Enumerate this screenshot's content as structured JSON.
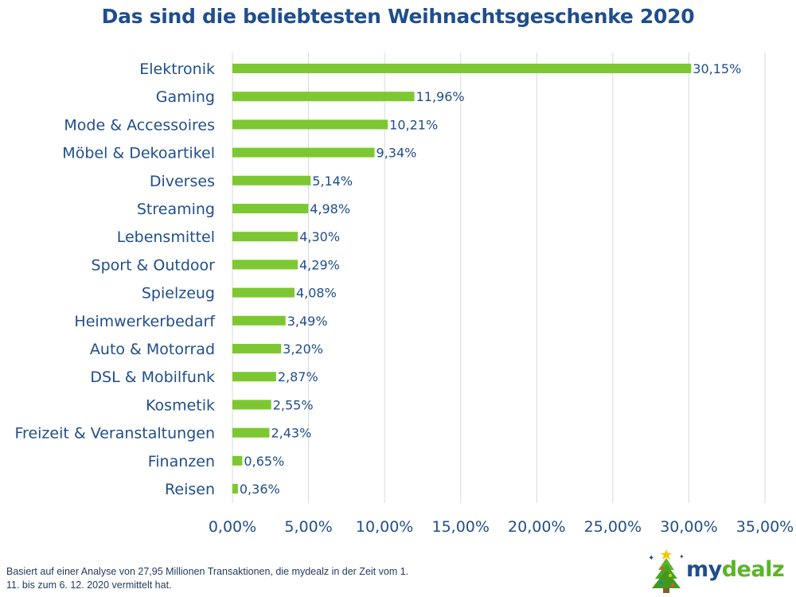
{
  "chart_data": {
    "type": "bar",
    "orientation": "horizontal",
    "title": "Das sind die beliebtesten Weihnachtsgeschenke 2020",
    "categories": [
      "Elektronik",
      "Gaming",
      "Mode & Accessoires",
      "Möbel & Dekoartikel",
      "Diverses",
      "Streaming",
      "Lebensmittel",
      "Sport & Outdoor",
      "Spielzeug",
      "Heimwerkerbedarf",
      "Auto & Motorrad",
      "DSL & Mobilfunk",
      "Kosmetik",
      "Freizeit & Veranstaltungen",
      "Finanzen",
      "Reisen"
    ],
    "values": [
      30.15,
      11.96,
      10.21,
      9.34,
      5.14,
      4.98,
      4.3,
      4.29,
      4.08,
      3.49,
      3.2,
      2.87,
      2.55,
      2.43,
      0.65,
      0.36
    ],
    "value_labels": [
      "30,15%",
      "11,96%",
      "10,21%",
      "9,34%",
      "5,14%",
      "4,98%",
      "4,30%",
      "4,29%",
      "4,08%",
      "3,49%",
      "3,20%",
      "2,87%",
      "2,55%",
      "2,43%",
      "0,65%",
      "0,36%"
    ],
    "xlim": [
      0,
      35
    ],
    "x_ticks": [
      0,
      5,
      10,
      15,
      20,
      25,
      30,
      35
    ],
    "x_tick_labels": [
      "0,00%",
      "5,00%",
      "10,00%",
      "15,00%",
      "20,00%",
      "25,00%",
      "30,00%",
      "35,00%"
    ],
    "xlabel": "",
    "ylabel": "",
    "grid": true,
    "bar_color": "#7dc832"
  },
  "footnote": "Basiert auf einer Analyse von 27,95 Millionen Transaktionen, die mydealz in der Zeit vom 1. 11. bis zum 6. 12. 2020 vermittelt hat.",
  "logo": {
    "part1": "my",
    "part2": "dealz",
    "icon": "christmas-tree-icon"
  },
  "colors": {
    "title": "#1f4e8c",
    "label": "#1f4e8c",
    "grid": "#d9d9d9"
  }
}
